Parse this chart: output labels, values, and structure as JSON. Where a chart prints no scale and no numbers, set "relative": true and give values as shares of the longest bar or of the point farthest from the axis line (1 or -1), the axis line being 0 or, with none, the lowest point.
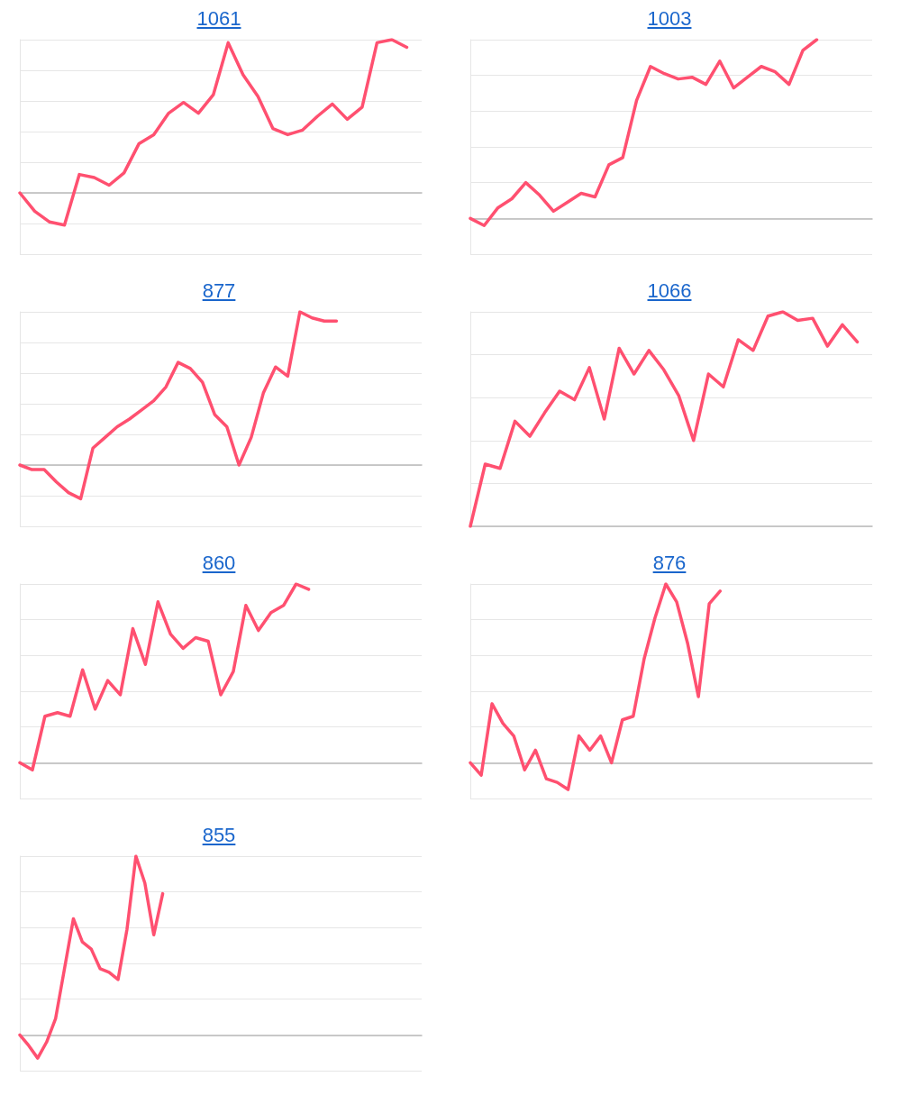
{
  "chart_data": [
    {
      "type": "line",
      "title": "1061",
      "relative": true,
      "grid": "y",
      "marker": "none",
      "line_style": "solid",
      "categories": [
        null,
        null,
        null,
        null,
        null,
        null,
        null,
        null,
        null,
        null,
        null,
        null,
        null,
        null,
        null,
        null,
        null,
        null,
        null,
        null,
        null,
        null,
        null,
        null,
        null,
        null,
        null,
        null
      ],
      "series": [
        {
          "color": "#ff5070",
          "values": [
            0,
            -0.12,
            -0.19,
            -0.21,
            0.12,
            0.1,
            0.05,
            0.13,
            0.32,
            0.38,
            0.52,
            0.59,
            0.52,
            0.64,
            0.98,
            0.77,
            0.63,
            0.42,
            0.38,
            0.41,
            0.5,
            0.58,
            0.48,
            0.56,
            0.98,
            1,
            0.95,
            null
          ]
        }
      ]
    },
    {
      "type": "line",
      "title": "1003",
      "relative": true,
      "grid": "y",
      "marker": "none",
      "line_style": "solid",
      "categories": [
        null,
        null,
        null,
        null,
        null,
        null,
        null,
        null,
        null,
        null,
        null,
        null,
        null,
        null,
        null,
        null,
        null,
        null,
        null,
        null,
        null,
        null,
        null,
        null,
        null,
        null,
        null,
        null,
        null,
        null
      ],
      "series": [
        {
          "color": "#ff5070",
          "values": [
            0,
            -0.04,
            0.06,
            0.11,
            0.2,
            0.13,
            0.04,
            0.09,
            0.14,
            0.12,
            0.3,
            0.34,
            0.66,
            0.85,
            0.81,
            0.78,
            0.79,
            0.75,
            0.88,
            0.73,
            0.79,
            0.85,
            0.82,
            0.75,
            0.94,
            1,
            null,
            null,
            null,
            null
          ]
        }
      ]
    },
    {
      "type": "line",
      "title": "877",
      "relative": true,
      "grid": "y",
      "marker": "none",
      "line_style": "solid",
      "categories": [
        null,
        null,
        null,
        null,
        null,
        null,
        null,
        null,
        null,
        null,
        null,
        null,
        null,
        null,
        null,
        null,
        null,
        null,
        null,
        null,
        null,
        null,
        null,
        null,
        null,
        null,
        null,
        null,
        null,
        null,
        null,
        null,
        null,
        null
      ],
      "series": [
        {
          "color": "#ff5070",
          "values": [
            0,
            -0.03,
            -0.03,
            -0.11,
            -0.18,
            -0.22,
            0.11,
            0.18,
            0.25,
            0.3,
            0.36,
            0.42,
            0.51,
            0.67,
            0.63,
            0.54,
            0.33,
            0.25,
            0,
            0.18,
            0.47,
            0.64,
            0.58,
            1,
            0.96,
            0.94,
            0.94,
            null,
            null,
            null,
            null,
            null,
            null,
            null
          ]
        }
      ]
    },
    {
      "type": "line",
      "title": "1066",
      "relative": true,
      "grid": "y",
      "marker": "none",
      "line_style": "solid",
      "categories": [
        null,
        null,
        null,
        null,
        null,
        null,
        null,
        null,
        null,
        null,
        null,
        null,
        null,
        null,
        null,
        null,
        null,
        null,
        null,
        null,
        null,
        null,
        null,
        null,
        null,
        null,
        null,
        null
      ],
      "series": [
        {
          "color": "#ff5070",
          "values": [
            0,
            0.29,
            0.27,
            0.49,
            0.42,
            0.53,
            0.63,
            0.59,
            0.74,
            0.5,
            0.83,
            0.71,
            0.82,
            0.73,
            0.61,
            0.4,
            0.71,
            0.65,
            0.87,
            0.82,
            0.98,
            1,
            0.96,
            0.97,
            0.84,
            0.94,
            0.86,
            null
          ]
        }
      ]
    },
    {
      "type": "line",
      "title": "860",
      "relative": true,
      "grid": "y",
      "marker": "none",
      "line_style": "solid",
      "categories": [
        null,
        null,
        null,
        null,
        null,
        null,
        null,
        null,
        null,
        null,
        null,
        null,
        null,
        null,
        null,
        null,
        null,
        null,
        null,
        null,
        null,
        null,
        null,
        null,
        null,
        null,
        null,
        null,
        null,
        null,
        null,
        null,
        null
      ],
      "series": [
        {
          "color": "#ff5070",
          "values": [
            0,
            -0.04,
            0.26,
            0.28,
            0.26,
            0.52,
            0.3,
            0.46,
            0.38,
            0.75,
            0.55,
            0.9,
            0.72,
            0.64,
            0.7,
            0.68,
            0.38,
            0.51,
            0.88,
            0.74,
            0.84,
            0.88,
            1,
            0.97,
            null,
            null,
            null,
            null,
            null,
            null,
            null,
            null,
            null
          ]
        }
      ]
    },
    {
      "type": "line",
      "title": "876",
      "relative": true,
      "grid": "y",
      "marker": "none",
      "line_style": "solid",
      "categories": [
        null,
        null,
        null,
        null,
        null,
        null,
        null,
        null,
        null,
        null,
        null,
        null,
        null,
        null,
        null,
        null,
        null,
        null,
        null,
        null,
        null,
        null,
        null,
        null,
        null,
        null,
        null,
        null,
        null,
        null,
        null,
        null,
        null,
        null,
        null,
        null,
        null,
        null
      ],
      "series": [
        {
          "color": "#ff5070",
          "values": [
            0,
            -0.07,
            0.33,
            0.22,
            0.15,
            -0.04,
            0.07,
            -0.09,
            -0.11,
            -0.15,
            0.15,
            0.07,
            0.15,
            0,
            0.24,
            0.26,
            0.58,
            0.81,
            1,
            0.9,
            0.67,
            0.37,
            0.89,
            0.96,
            null,
            null,
            null,
            null,
            null,
            null,
            null,
            null,
            null,
            null,
            null,
            null,
            null,
            null
          ]
        }
      ]
    },
    {
      "type": "line",
      "title": "855",
      "relative": true,
      "grid": "y",
      "marker": "none",
      "line_style": "solid",
      "categories": [
        null,
        null,
        null,
        null,
        null,
        null,
        null,
        null,
        null,
        null,
        null,
        null,
        null,
        null,
        null,
        null,
        null,
        null,
        null,
        null,
        null,
        null,
        null,
        null,
        null,
        null,
        null,
        null,
        null,
        null,
        null,
        null,
        null,
        null,
        null,
        null,
        null,
        null,
        null,
        null,
        null,
        null,
        null,
        null,
        null,
        null
      ],
      "series": [
        {
          "color": "#ff5070",
          "values": [
            0,
            -0.06,
            -0.13,
            -0.04,
            0.09,
            0.37,
            0.65,
            0.52,
            0.48,
            0.37,
            0.35,
            0.31,
            0.59,
            1,
            0.85,
            0.56,
            0.79,
            null,
            null,
            null,
            null,
            null,
            null,
            null,
            null,
            null,
            null,
            null,
            null,
            null,
            null,
            null,
            null,
            null,
            null,
            null,
            null,
            null,
            null,
            null,
            null,
            null,
            null,
            null,
            null,
            null
          ]
        }
      ]
    }
  ]
}
